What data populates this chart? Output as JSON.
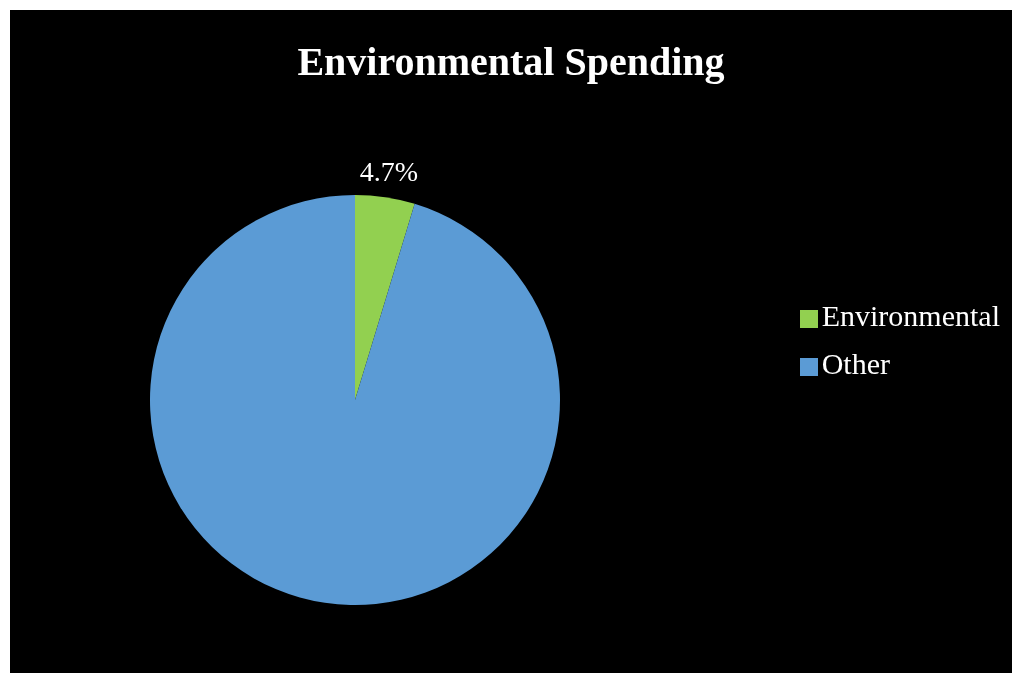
{
  "chart_data": {
    "type": "pie",
    "title": "Environmental Spending",
    "categories": [
      "Environmental",
      "Other"
    ],
    "values": [
      4.7,
      95.3
    ],
    "colors": [
      "#92d050",
      "#5b9bd5"
    ],
    "value_labels": [
      "4.7%",
      null
    ],
    "legend": "right"
  }
}
